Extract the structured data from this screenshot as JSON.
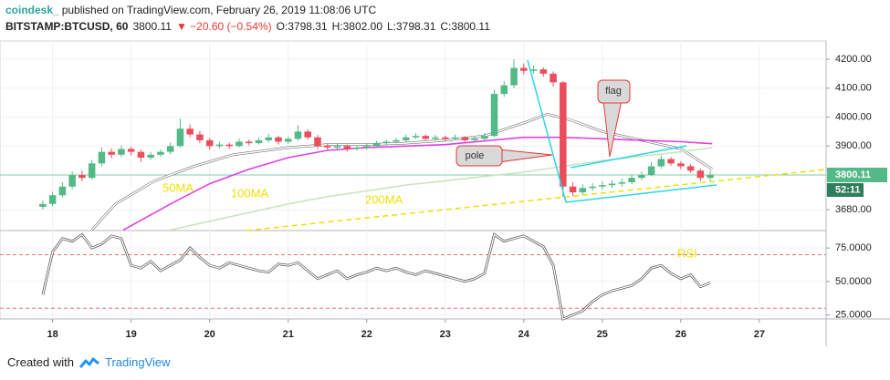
{
  "chart_data": {
    "type": "candlestick",
    "header": {
      "author": "coindesk_",
      "published": "published on TradingView.com, February 26, 2019 11:08:06 UTC",
      "symbol": "BITSTAMP:BTCUSD, 60",
      "price": "3800.11",
      "change": "▼ −20.60 (−0.54%)",
      "open": "O:3798.31",
      "high": "H:3802.00",
      "low": "L:3798.31",
      "close": "C:3800.11"
    },
    "footer": {
      "created": "Created with",
      "brand": "TradingView"
    },
    "x": [
      17.875,
      18,
      18.125,
      18.25,
      18.375,
      18.5,
      18.625,
      18.75,
      18.875,
      19,
      19.125,
      19.25,
      19.375,
      19.5,
      19.625,
      19.75,
      19.875,
      20,
      20.125,
      20.25,
      20.375,
      20.5,
      20.625,
      20.75,
      20.875,
      21,
      21.125,
      21.25,
      21.375,
      21.5,
      21.625,
      21.75,
      21.875,
      22,
      22.125,
      22.25,
      22.375,
      22.5,
      22.625,
      22.75,
      22.875,
      23,
      23.125,
      23.25,
      23.375,
      23.5,
      23.625,
      23.75,
      23.875,
      24,
      24.125,
      24.25,
      24.375,
      24.5,
      24.625,
      24.75,
      24.875,
      25,
      25.125,
      25.25,
      25.375,
      25.5,
      25.625,
      25.75,
      25.875,
      26,
      26.125,
      26.25,
      26.375
    ],
    "ohlc": [
      [
        3690,
        3712,
        3680,
        3700
      ],
      [
        3700,
        3742,
        3692,
        3730
      ],
      [
        3730,
        3775,
        3722,
        3760
      ],
      [
        3760,
        3812,
        3750,
        3800
      ],
      [
        3800,
        3815,
        3778,
        3790
      ],
      [
        3790,
        3852,
        3785,
        3840
      ],
      [
        3840,
        3895,
        3830,
        3880
      ],
      [
        3880,
        3892,
        3858,
        3870
      ],
      [
        3870,
        3902,
        3862,
        3890
      ],
      [
        3890,
        3898,
        3868,
        3880
      ],
      [
        3880,
        3888,
        3845,
        3860
      ],
      [
        3860,
        3880,
        3852,
        3870
      ],
      [
        3870,
        3888,
        3862,
        3880
      ],
      [
        3880,
        3912,
        3872,
        3900
      ],
      [
        3900,
        3995,
        3895,
        3960
      ],
      [
        3960,
        3975,
        3930,
        3940
      ],
      [
        3940,
        3952,
        3910,
        3920
      ],
      [
        3920,
        3928,
        3888,
        3900
      ],
      [
        3900,
        3915,
        3892,
        3905
      ],
      [
        3905,
        3912,
        3890,
        3900
      ],
      [
        3900,
        3925,
        3895,
        3915
      ],
      [
        3915,
        3922,
        3902,
        3910
      ],
      [
        3910,
        3930,
        3905,
        3920
      ],
      [
        3920,
        3942,
        3912,
        3930
      ],
      [
        3930,
        3936,
        3905,
        3915
      ],
      [
        3915,
        3932,
        3908,
        3925
      ],
      [
        3925,
        3972,
        3918,
        3950
      ],
      [
        3950,
        3958,
        3922,
        3930
      ],
      [
        3930,
        3938,
        3890,
        3900
      ],
      [
        3900,
        3908,
        3885,
        3895
      ],
      [
        3895,
        3910,
        3888,
        3900
      ],
      [
        3900,
        3905,
        3880,
        3890
      ],
      [
        3890,
        3902,
        3884,
        3895
      ],
      [
        3895,
        3908,
        3888,
        3900
      ],
      [
        3900,
        3918,
        3894,
        3910
      ],
      [
        3910,
        3922,
        3904,
        3915
      ],
      [
        3915,
        3928,
        3910,
        3920
      ],
      [
        3920,
        3940,
        3914,
        3930
      ],
      [
        3930,
        3945,
        3925,
        3935
      ],
      [
        3935,
        3940,
        3918,
        3925
      ],
      [
        3925,
        3938,
        3920,
        3930
      ],
      [
        3930,
        3936,
        3918,
        3925
      ],
      [
        3925,
        3940,
        3920,
        3930
      ],
      [
        3930,
        3934,
        3912,
        3920
      ],
      [
        3920,
        3932,
        3914,
        3925
      ],
      [
        3925,
        3945,
        3918,
        3935
      ],
      [
        3935,
        4095,
        3930,
        4080
      ],
      [
        4080,
        4125,
        4070,
        4110
      ],
      [
        4110,
        4200,
        4100,
        4170
      ],
      [
        4170,
        4185,
        4148,
        4160
      ],
      [
        4160,
        4178,
        4150,
        4165
      ],
      [
        4165,
        4172,
        4140,
        4150
      ],
      [
        4150,
        4158,
        4105,
        4120
      ],
      [
        4120,
        4125,
        3725,
        3760
      ],
      [
        3760,
        3775,
        3728,
        3740
      ],
      [
        3740,
        3768,
        3732,
        3755
      ],
      [
        3755,
        3772,
        3745,
        3760
      ],
      [
        3760,
        3778,
        3750,
        3765
      ],
      [
        3765,
        3782,
        3755,
        3770
      ],
      [
        3770,
        3788,
        3760,
        3775
      ],
      [
        3775,
        3800,
        3768,
        3790
      ],
      [
        3790,
        3812,
        3782,
        3800
      ],
      [
        3800,
        3845,
        3795,
        3830
      ],
      [
        3830,
        3868,
        3822,
        3855
      ],
      [
        3855,
        3862,
        3832,
        3840
      ],
      [
        3840,
        3848,
        3820,
        3830
      ],
      [
        3830,
        3838,
        3808,
        3815
      ],
      [
        3815,
        3822,
        3780,
        3790
      ],
      [
        3790,
        3815,
        3775,
        3800.11
      ]
    ],
    "up_color": "#53b987",
    "down_color": "#eb4d5c",
    "series": [
      {
        "name": "50MA",
        "color": "#ffffff",
        "x": [
          18.5,
          18.8,
          19.3,
          19.8,
          20.3,
          21,
          21.5,
          22,
          22.5,
          23,
          23.5,
          24,
          24.3,
          24.6,
          25,
          25.5,
          26,
          26.4
        ],
        "values": [
          3610,
          3700,
          3780,
          3830,
          3870,
          3895,
          3905,
          3905,
          3910,
          3920,
          3935,
          3980,
          4010,
          3990,
          3950,
          3920,
          3890,
          3820
        ]
      },
      {
        "name": "100MA",
        "color": "#e040e0",
        "x": [
          18.9,
          19.5,
          20,
          20.5,
          21,
          21.5,
          22,
          23,
          24,
          24.5,
          25,
          25.5,
          26,
          26.4
        ],
        "values": [
          3610,
          3700,
          3770,
          3820,
          3860,
          3885,
          3895,
          3905,
          3930,
          3930,
          3925,
          3920,
          3915,
          3908
        ]
      },
      {
        "name": "200MA",
        "color": "#c8e6c0",
        "x": [
          19.5,
          20,
          20.5,
          21,
          21.5,
          22,
          22.5,
          23,
          23.5,
          24,
          24.5,
          25,
          25.5,
          26,
          26.4
        ],
        "values": [
          3610,
          3640,
          3670,
          3700,
          3725,
          3745,
          3765,
          3780,
          3795,
          3810,
          3830,
          3850,
          3865,
          3880,
          3895
        ]
      }
    ],
    "last_price": 3800.11,
    "countdown": "52:11",
    "xlim": [
      17.33,
      27.85
    ],
    "xticks": [
      18,
      19,
      20,
      21,
      22,
      23,
      24,
      25,
      26,
      27
    ],
    "bold_xtick": 25,
    "ylim": [
      3608,
      4263
    ],
    "yticks": [
      {
        "value": 3680,
        "label": "3680.00"
      },
      {
        "value": 3900,
        "label": "3900.00"
      },
      {
        "value": 4000,
        "label": "4000.00"
      },
      {
        "value": 4100,
        "label": "4100.00"
      },
      {
        "value": 4200,
        "label": "4200.00"
      }
    ],
    "annotations": {
      "pole": "pole",
      "flag": "flag"
    },
    "rsi": {
      "name": "RSI",
      "color": "#ffffff",
      "values": [
        40,
        72,
        82,
        80,
        85,
        75,
        78,
        84,
        82,
        62,
        60,
        65,
        58,
        62,
        66,
        75,
        68,
        62,
        60,
        64,
        62,
        60,
        58,
        57,
        63,
        62,
        64,
        58,
        52,
        55,
        58,
        52,
        55,
        57,
        60,
        58,
        60,
        57,
        55,
        58,
        56,
        54,
        52,
        50,
        52,
        56,
        85,
        80,
        82,
        84,
        80,
        76,
        62,
        22,
        25,
        28,
        35,
        40,
        43,
        45,
        47,
        52,
        60,
        62,
        56,
        52,
        55,
        46,
        49
      ],
      "ylim": [
        22,
        88
      ],
      "yticks": [
        {
          "value": 25,
          "label": "25.0000"
        },
        {
          "value": 50,
          "label": "50.0000"
        },
        {
          "value": 75,
          "label": "75.0000"
        }
      ],
      "bands": [
        30,
        70
      ]
    }
  }
}
